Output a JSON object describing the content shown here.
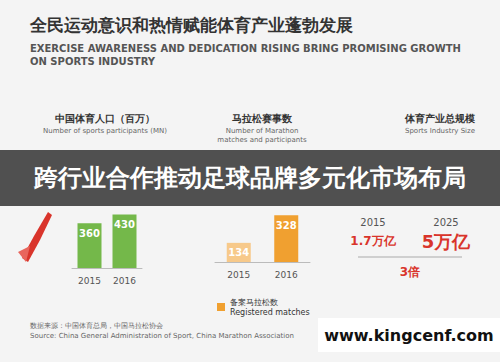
{
  "title": "全民运动意识和热情赋能体育产业蓬勃发展",
  "subtitle": [
    "EXERCISE AWARENESS AND DEDICATION RISING BRING PROMISING GROWTH",
    "ON SPORTS INDUSTRY"
  ],
  "banner": "跨行业合作推动足球品牌多元化市场布局",
  "source": [
    "数据来源：中国体育总局，中国马拉松协会",
    "Source: China General Administration of Sport, China Marathon Association"
  ],
  "watermark": "www.kingcenf.com",
  "chart_data": [
    {
      "type": "bar",
      "title": "中国体育人口（百万）",
      "subtitle": [
        "Number of sports participants (MN)"
      ],
      "categories": [
        "2015",
        "2016"
      ],
      "values": [
        360,
        430
      ],
      "color": "#74b84a",
      "ylim": [
        0,
        450
      ],
      "tick_labels": "x",
      "data_labels": true
    },
    {
      "type": "bar",
      "title": "马拉松赛事数",
      "subtitle": [
        "Number of Marathon",
        "matches and participants"
      ],
      "categories": [
        "2015",
        "2016"
      ],
      "series": [
        {
          "name": "备案马拉松数\nRegistered matches",
          "color": "#f0a030",
          "colors": [
            "#f7c98a",
            "#f0a030"
          ],
          "values": [
            134,
            328
          ]
        }
      ],
      "ylim": [
        0,
        350
      ],
      "tick_labels": "x",
      "data_labels": true,
      "legend": "bottom"
    },
    {
      "type": "stat",
      "title": "体育产业总规模",
      "subtitle": [
        "Sports Industry Size"
      ],
      "categories": [
        "2015",
        "2025"
      ],
      "values": [
        1.7,
        5
      ],
      "value_labels": [
        "1.7万亿",
        "5万亿"
      ],
      "color": "#d9342b",
      "annotation": "3倍"
    }
  ]
}
